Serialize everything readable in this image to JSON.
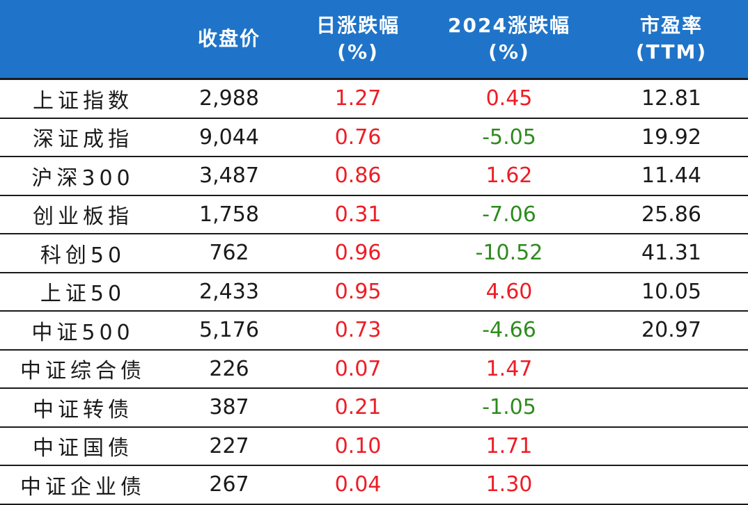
{
  "header": {
    "col0": "",
    "col1": "收盘价",
    "col2_line1": "日涨跌幅",
    "col2_line2": "(%)",
    "col3_line1": "2024涨跌幅",
    "col3_line2": "(%)",
    "col4_line1": "市盈率",
    "col4_line2": "(TTM)"
  },
  "colors": {
    "header_bg": "#1f74c9",
    "positive": "#ee1c25",
    "negative": "#2e8b1e"
  },
  "rows": [
    {
      "name": "上证指数",
      "close": "2,988",
      "day": "1.27",
      "ytd": "0.45",
      "pe": "12.81"
    },
    {
      "name": "深证成指",
      "close": "9,044",
      "day": "0.76",
      "ytd": "-5.05",
      "pe": "19.92"
    },
    {
      "name": "沪深300",
      "close": "3,487",
      "day": "0.86",
      "ytd": "1.62",
      "pe": "11.44"
    },
    {
      "name": "创业板指",
      "close": "1,758",
      "day": "0.31",
      "ytd": "-7.06",
      "pe": "25.86"
    },
    {
      "name": "科创50",
      "close": "762",
      "day": "0.96",
      "ytd": "-10.52",
      "pe": "41.31"
    },
    {
      "name": "上证50",
      "close": "2,433",
      "day": "0.95",
      "ytd": "4.60",
      "pe": "10.05"
    },
    {
      "name": "中证500",
      "close": "5,176",
      "day": "0.73",
      "ytd": "-4.66",
      "pe": "20.97"
    },
    {
      "name": "中证综合债",
      "close": "226",
      "day": "0.07",
      "ytd": "1.47",
      "pe": ""
    },
    {
      "name": "中证转债",
      "close": "387",
      "day": "0.21",
      "ytd": "-1.05",
      "pe": ""
    },
    {
      "name": "中证国债",
      "close": "227",
      "day": "0.10",
      "ytd": "1.71",
      "pe": ""
    },
    {
      "name": "中证企业债",
      "close": "267",
      "day": "0.04",
      "ytd": "1.30",
      "pe": ""
    }
  ]
}
